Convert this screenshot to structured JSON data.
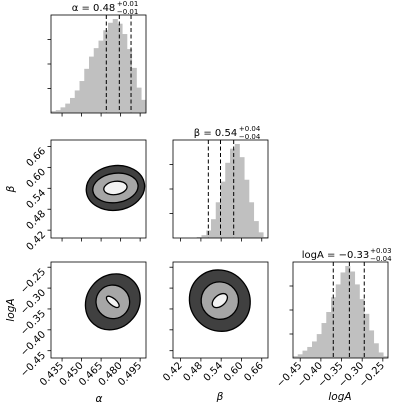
{
  "chart_data": {
    "type": "corner",
    "colors": {
      "hist": "#c0c0c0",
      "c1": "#f2f2f2",
      "c2": "#a6a6a6",
      "c3": "#404040",
      "line": "#000000"
    },
    "params": [
      {
        "key": "alpha",
        "axis_label": "α",
        "title": "α = 0.48",
        "title_sup": "+0.01",
        "title_sub": "−0.01",
        "quantiles": [
          0.469,
          0.479,
          0.488
        ],
        "range": [
          0.4265,
          0.4995
        ],
        "ticks": [
          0.435,
          0.45,
          0.465,
          0.48,
          0.495
        ],
        "tick_labels": [
          "0.435",
          "0.450",
          "0.465",
          "0.480",
          "0.495"
        ],
        "hist_counts": [
          2,
          3,
          6,
          10,
          16,
          24,
          34,
          47,
          60,
          69,
          77,
          88,
          96,
          100,
          95,
          84,
          68,
          48,
          27,
          14
        ]
      },
      {
        "key": "beta",
        "axis_label": "β",
        "title": "β = 0.54",
        "title_sup": "+0.04",
        "title_sub": "−0.04",
        "quantiles": [
          0.502,
          0.538,
          0.577
        ],
        "range": [
          0.3975,
          0.6785
        ],
        "ticks": [
          0.42,
          0.48,
          0.54,
          0.6,
          0.66
        ],
        "tick_labels": [
          "0.42",
          "0.48",
          "0.54",
          "0.60",
          "0.66"
        ],
        "hist_counts": [
          0,
          0,
          0,
          0,
          0,
          1,
          3,
          8,
          20,
          38,
          60,
          80,
          95,
          100,
          86,
          62,
          38,
          18,
          6,
          1
        ]
      },
      {
        "key": "logA",
        "axis_label": "logA",
        "title": "logA = −0.33",
        "title_sup": "+0.03",
        "title_sub": "−0.04",
        "quantiles": [
          -0.37,
          -0.331,
          -0.295
        ],
        "range": [
          -0.4675,
          -0.2375
        ],
        "ticks": [
          -0.45,
          -0.4,
          -0.35,
          -0.3,
          -0.25
        ],
        "tick_labels": [
          "−0.45",
          "−0.40",
          "−0.35",
          "−0.30",
          "−0.25"
        ],
        "hist_counts": [
          2,
          4,
          8,
          12,
          18,
          26,
          38,
          50,
          66,
          80,
          93,
          100,
          94,
          80,
          64,
          48,
          30,
          16,
          6,
          2
        ]
      }
    ],
    "contour_pairs": [
      {
        "x": "alpha",
        "y": "beta",
        "center": [
          0.476,
          0.541
        ],
        "rx": [
          0.009,
          0.0175,
          0.0225
        ],
        "ry": [
          0.019,
          0.042,
          0.064
        ],
        "tilt": -8
      },
      {
        "x": "alpha",
        "y": "logA",
        "center": [
          0.474,
          -0.333
        ],
        "rx": [
          0.006,
          0.013,
          0.02
        ],
        "ry": [
          0.008,
          0.04,
          0.07
        ],
        "tilt": 40
      },
      {
        "x": "beta",
        "y": "logA",
        "center": [
          0.536,
          -0.33
        ],
        "rx": [
          0.026,
          0.055,
          0.088
        ],
        "ry": [
          0.013,
          0.045,
          0.075
        ],
        "tilt": -40
      }
    ]
  }
}
